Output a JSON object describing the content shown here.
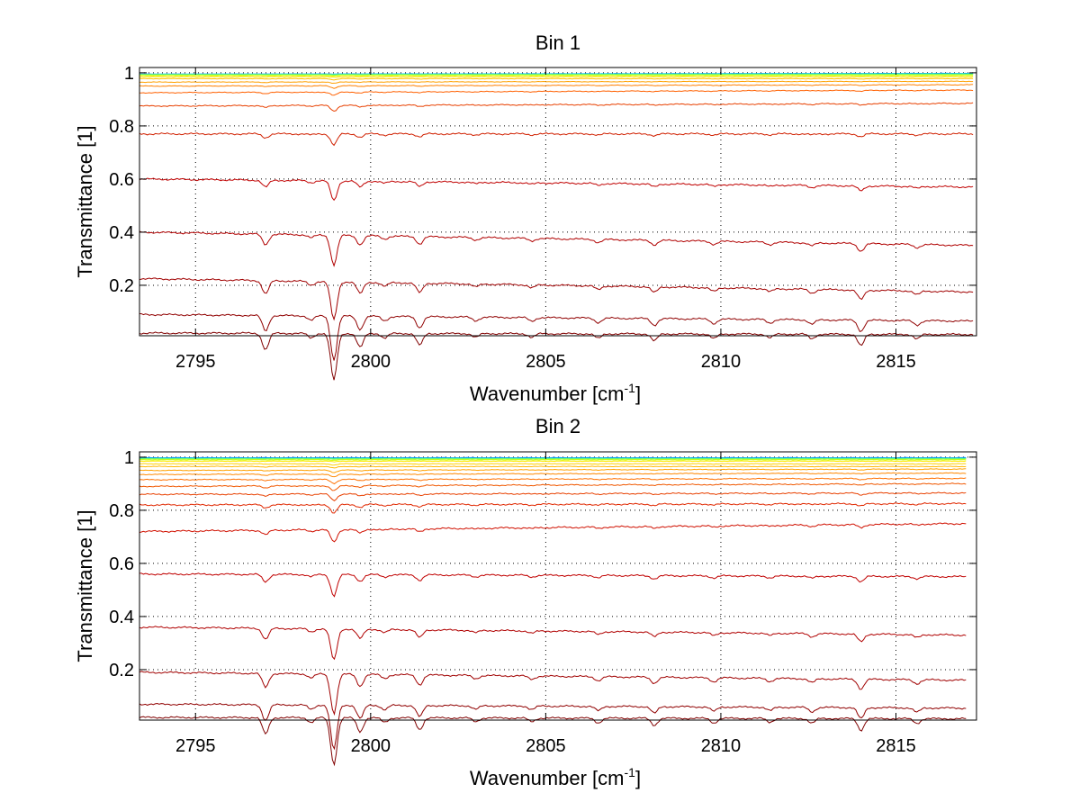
{
  "chart_data": [
    {
      "type": "line",
      "title": "Bin 1",
      "xlabel_main": "Wavenumber [cm",
      "xlabel_sup": "-1",
      "xlabel_end": "]",
      "ylabel": "Transmittance [1]",
      "xlim": [
        2793.4,
        2817.3
      ],
      "ylim": [
        0.01,
        1.02
      ],
      "x_ticks": [
        2795,
        2800,
        2805,
        2810,
        2815
      ],
      "x_tick_labels": [
        "2795",
        "2800",
        "2805",
        "2810",
        "2815"
      ],
      "y_ticks": [
        0.2,
        0.4,
        0.6,
        0.8,
        1.0
      ],
      "y_tick_labels": [
        "0.2",
        "0.4",
        "0.6",
        "0.8",
        "1"
      ],
      "grid": "dotted",
      "x_end": 2817.2,
      "series_style": "spectra colored red (strong absorption) to blue (near 1)",
      "series": [
        {
          "baseline_start": 0.995,
          "baseline_end": 0.998,
          "color": "#0080ff"
        },
        {
          "baseline_start": 0.995,
          "baseline_end": 0.997,
          "color": "#00c0ff"
        },
        {
          "baseline_start": 0.994,
          "baseline_end": 0.996,
          "color": "#20e0c0"
        },
        {
          "baseline_start": 0.993,
          "baseline_end": 0.995,
          "color": "#60ff90"
        },
        {
          "baseline_start": 0.992,
          "baseline_end": 0.993,
          "color": "#a0ff40"
        },
        {
          "baseline_start": 0.99,
          "baseline_end": 0.99,
          "color": "#e0ff00"
        },
        {
          "baseline_start": 0.985,
          "baseline_end": 0.985,
          "color": "#ffe000"
        },
        {
          "baseline_start": 0.978,
          "baseline_end": 0.978,
          "color": "#ffc000"
        },
        {
          "baseline_start": 0.965,
          "baseline_end": 0.968,
          "color": "#ffa000"
        },
        {
          "baseline_start": 0.95,
          "baseline_end": 0.955,
          "color": "#ff8000"
        },
        {
          "baseline_start": 0.925,
          "baseline_end": 0.935,
          "color": "#ff6000"
        },
        {
          "baseline_start": 0.875,
          "baseline_end": 0.885,
          "color": "#e84000"
        },
        {
          "baseline_start": 0.77,
          "baseline_end": 0.77,
          "color": "#d02000"
        },
        {
          "baseline_start": 0.6,
          "baseline_end": 0.57,
          "color": "#c00000"
        },
        {
          "baseline_start": 0.4,
          "baseline_end": 0.35,
          "color": "#b00000"
        },
        {
          "baseline_start": 0.225,
          "baseline_end": 0.175,
          "color": "#a00000"
        },
        {
          "baseline_start": 0.09,
          "baseline_end": 0.065,
          "color": "#900000"
        },
        {
          "baseline_start": 0.02,
          "baseline_end": 0.015,
          "color": "#800000"
        }
      ]
    },
    {
      "type": "line",
      "title": "Bin 2",
      "xlabel_main": "Wavenumber [cm",
      "xlabel_sup": "-1",
      "xlabel_end": "]",
      "ylabel": "Transmittance [1]",
      "xlim": [
        2793.4,
        2817.3
      ],
      "ylim": [
        0.01,
        1.02
      ],
      "x_ticks": [
        2795,
        2800,
        2805,
        2810,
        2815
      ],
      "x_tick_labels": [
        "2795",
        "2800",
        "2805",
        "2810",
        "2815"
      ],
      "y_ticks": [
        0.2,
        0.4,
        0.6,
        0.8,
        1.0
      ],
      "y_tick_labels": [
        "0.2",
        "0.4",
        "0.6",
        "0.8",
        "1"
      ],
      "grid": "dotted",
      "x_end": 2817.0,
      "series_style": "spectra colored red (strong absorption) to blue (near 1)",
      "series": [
        {
          "baseline_start": 0.998,
          "baseline_end": 0.998,
          "color": "#0060ff"
        },
        {
          "baseline_start": 0.997,
          "baseline_end": 0.997,
          "color": "#00a0ff"
        },
        {
          "baseline_start": 0.996,
          "baseline_end": 0.996,
          "color": "#00d0e0"
        },
        {
          "baseline_start": 0.995,
          "baseline_end": 0.995,
          "color": "#40f0a0"
        },
        {
          "baseline_start": 0.993,
          "baseline_end": 0.993,
          "color": "#90ff50"
        },
        {
          "baseline_start": 0.99,
          "baseline_end": 0.99,
          "color": "#d0ff10"
        },
        {
          "baseline_start": 0.985,
          "baseline_end": 0.985,
          "color": "#ffe800"
        },
        {
          "baseline_start": 0.975,
          "baseline_end": 0.975,
          "color": "#ffd000"
        },
        {
          "baseline_start": 0.965,
          "baseline_end": 0.965,
          "color": "#ffb800"
        },
        {
          "baseline_start": 0.95,
          "baseline_end": 0.955,
          "color": "#ffa000"
        },
        {
          "baseline_start": 0.935,
          "baseline_end": 0.94,
          "color": "#ff8800"
        },
        {
          "baseline_start": 0.915,
          "baseline_end": 0.92,
          "color": "#ff7000"
        },
        {
          "baseline_start": 0.89,
          "baseline_end": 0.9,
          "color": "#f05800"
        },
        {
          "baseline_start": 0.86,
          "baseline_end": 0.865,
          "color": "#e84000"
        },
        {
          "baseline_start": 0.82,
          "baseline_end": 0.825,
          "color": "#e02800"
        },
        {
          "baseline_start": 0.72,
          "baseline_end": 0.75,
          "color": "#d01000"
        },
        {
          "baseline_start": 0.56,
          "baseline_end": 0.55,
          "color": "#c00000"
        },
        {
          "baseline_start": 0.36,
          "baseline_end": 0.33,
          "color": "#b00000"
        },
        {
          "baseline_start": 0.19,
          "baseline_end": 0.16,
          "color": "#a00000"
        },
        {
          "baseline_start": 0.07,
          "baseline_end": 0.055,
          "color": "#900000"
        },
        {
          "baseline_start": 0.02,
          "baseline_end": 0.015,
          "color": "#800000"
        }
      ]
    }
  ]
}
